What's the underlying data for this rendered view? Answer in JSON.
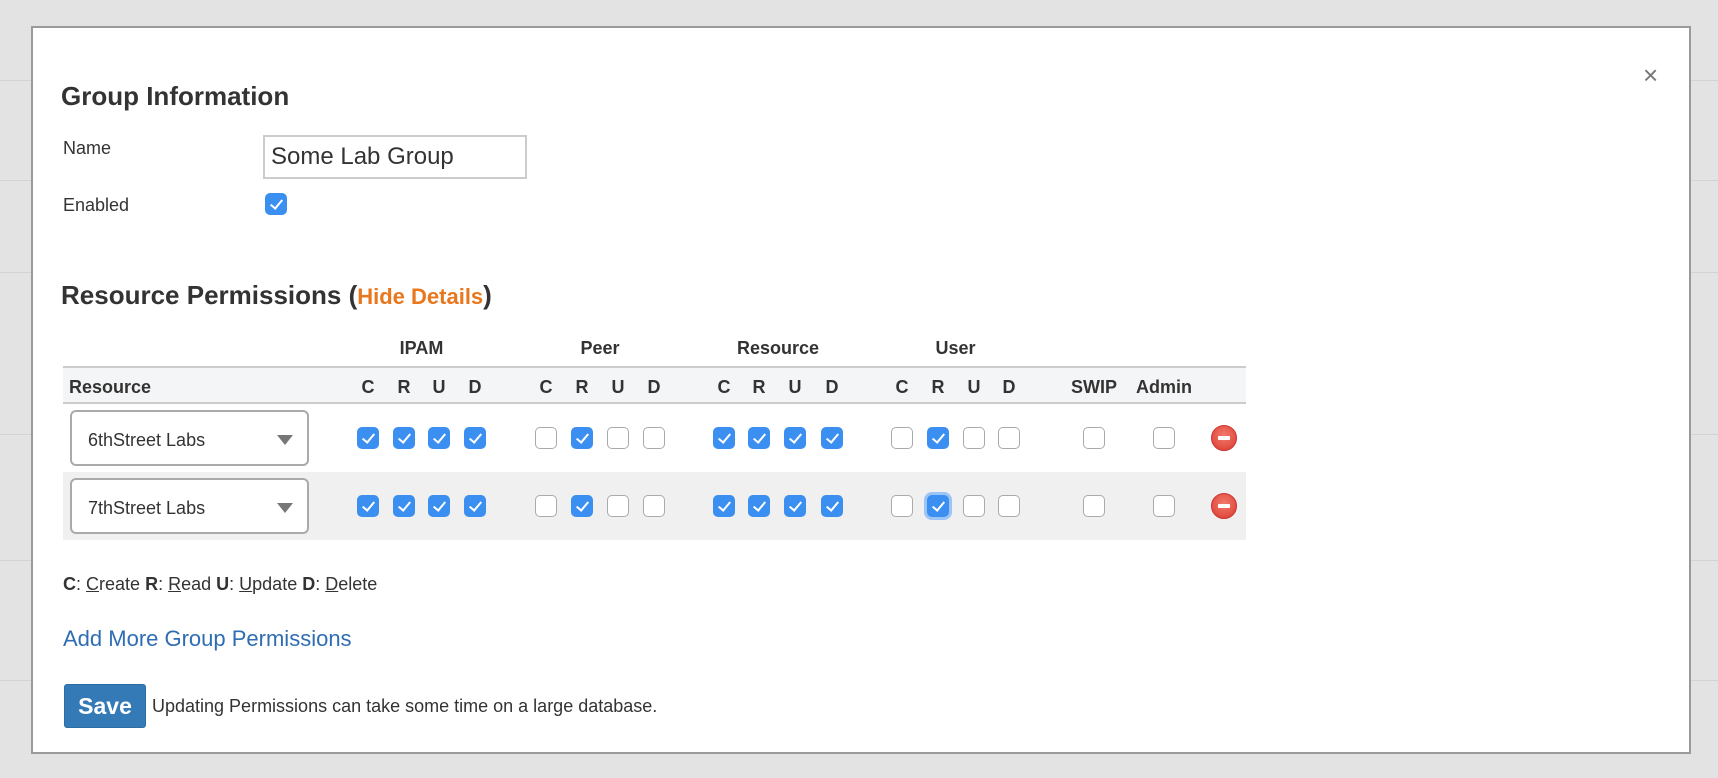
{
  "modal": {
    "close_label": "×",
    "group_info_title": "Group Information",
    "name_label": "Name",
    "name_value": "Some Lab Group",
    "enabled_label": "Enabled",
    "enabled": true,
    "permissions_title": "Resource Permissions (",
    "permissions_title_end": ")",
    "hide_details_label": "Hide Details",
    "table": {
      "groups": [
        "IPAM",
        "Peer",
        "Resource",
        "User"
      ],
      "resource_header": "Resource",
      "crud_headers": [
        "C",
        "R",
        "U",
        "D"
      ],
      "swip_header": "SWIP",
      "admin_header": "Admin",
      "rows": [
        {
          "resource": "6thStreet Labs",
          "ipam": [
            true,
            true,
            true,
            true
          ],
          "peer": [
            false,
            true,
            false,
            false
          ],
          "resource_perm": [
            true,
            true,
            true,
            true
          ],
          "user": [
            false,
            true,
            false,
            false
          ],
          "swip": false,
          "admin": false
        },
        {
          "resource": "7thStreet Labs",
          "ipam": [
            true,
            true,
            true,
            true
          ],
          "peer": [
            false,
            true,
            false,
            false
          ],
          "resource_perm": [
            true,
            true,
            true,
            true
          ],
          "user": [
            false,
            true,
            false,
            false
          ],
          "swip": false,
          "admin": false
        }
      ]
    },
    "legend": [
      {
        "key": "C",
        "word_first": "C",
        "word_rest": "reate"
      },
      {
        "key": "R",
        "word_first": "R",
        "word_rest": "ead"
      },
      {
        "key": "U",
        "word_first": "U",
        "word_rest": "pdate"
      },
      {
        "key": "D",
        "word_first": "D",
        "word_rest": "elete"
      }
    ],
    "add_more_label": "Add More Group Permissions",
    "save_label": "Save",
    "save_note": "Updating Permissions can take some time on a large database."
  },
  "colors": {
    "accent": "#3b8ff0",
    "link": "#2f6db3",
    "hide_link": "#e8771d",
    "save": "#337ab7",
    "remove": "#d8392c"
  }
}
